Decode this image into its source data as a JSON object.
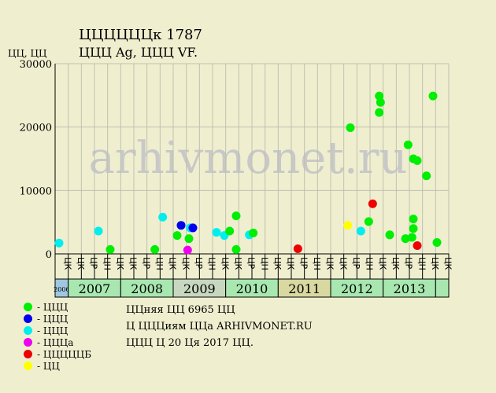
{
  "header": {
    "title": "ЦЦЦЦЦЦк 1787",
    "subtitle": "ЦЦЦ Ag, ЦЦЦ VF.",
    "y_unit": "ЦЦ, ЦЦ"
  },
  "watermark": "arhivmonet.ru",
  "legend": [
    {
      "label": "- ЦЦЦ",
      "color": "#00ee00"
    },
    {
      "label": "- ЦЦЦ",
      "color": "#0000ee"
    },
    {
      "label": "- ЦЦЦ",
      "color": "#00eeee"
    },
    {
      "label": "- ЦЦЦа",
      "color": "#ee00ee"
    },
    {
      "label": "- ЦЦЦЦЦБ",
      "color": "#ee0000"
    },
    {
      "label": "- ЦЦ",
      "color": "#ffff00"
    }
  ],
  "info": {
    "line1": "ЦЦняя ЦЦ 6965 ЦЦ",
    "line2": "Ц ЦЦЦиям ЦЦа ARHIVMONET.RU",
    "line3": "ЦЦЦ Ц 20 Ця 2017 ЦЦ."
  },
  "chart_data": {
    "type": "scatter",
    "ylim": [
      0,
      30000
    ],
    "yticks": [
      0,
      10000,
      20000,
      30000
    ],
    "quarter_labels": [
      "ЦК",
      "ЦР",
      "ЦН",
      "ЦК"
    ],
    "years": [
      {
        "label": "2006",
        "quarters": 1,
        "color": "#9fc8e0"
      },
      {
        "label": "2007",
        "quarters": 4,
        "color": "#a8e8b0"
      },
      {
        "label": "2008",
        "quarters": 4,
        "color": "#a8e8b0"
      },
      {
        "label": "2009",
        "quarters": 4,
        "color": "#c8d8c0"
      },
      {
        "label": "2010",
        "quarters": 4,
        "color": "#a8e8b0"
      },
      {
        "label": "2011",
        "quarters": 4,
        "color": "#d8d8a0"
      },
      {
        "label": "2012",
        "quarters": 4,
        "color": "#a8e8b0"
      },
      {
        "label": "2013",
        "quarters": 4,
        "color": "#a8e8b0"
      },
      {
        "label": "",
        "quarters": 1,
        "color": "#a8e8b0"
      }
    ],
    "points": [
      {
        "x": 0.3,
        "y": 1700,
        "c": "#00eeee"
      },
      {
        "x": 3.3,
        "y": 3600,
        "c": "#00eeee"
      },
      {
        "x": 4.2,
        "y": 700,
        "c": "#00ee00"
      },
      {
        "x": 7.6,
        "y": 700,
        "c": "#00ee00"
      },
      {
        "x": 8.2,
        "y": 5800,
        "c": "#00eeee"
      },
      {
        "x": 9.3,
        "y": 2900,
        "c": "#00ee00"
      },
      {
        "x": 9.6,
        "y": 4500,
        "c": "#0000ee"
      },
      {
        "x": 10.1,
        "y": 600,
        "c": "#ee00ee"
      },
      {
        "x": 10.2,
        "y": 2400,
        "c": "#00ee00"
      },
      {
        "x": 10.3,
        "y": 4100,
        "c": "#00eeee"
      },
      {
        "x": 10.5,
        "y": 4100,
        "c": "#0000ee"
      },
      {
        "x": 12.3,
        "y": 3400,
        "c": "#00eeee"
      },
      {
        "x": 12.9,
        "y": 2900,
        "c": "#00eeee"
      },
      {
        "x": 13.3,
        "y": 3600,
        "c": "#00ee00"
      },
      {
        "x": 13.8,
        "y": 6000,
        "c": "#00ee00"
      },
      {
        "x": 13.8,
        "y": 700,
        "c": "#00ee00"
      },
      {
        "x": 14.8,
        "y": 3000,
        "c": "#00eeee"
      },
      {
        "x": 15.1,
        "y": 3300,
        "c": "#00ee00"
      },
      {
        "x": 18.5,
        "y": 800,
        "c": "#ee0000"
      },
      {
        "x": 22.3,
        "y": 4500,
        "c": "#ffff00"
      },
      {
        "x": 22.5,
        "y": 19900,
        "c": "#00ee00"
      },
      {
        "x": 23.3,
        "y": 3600,
        "c": "#00eeee"
      },
      {
        "x": 23.9,
        "y": 5100,
        "c": "#00ee00"
      },
      {
        "x": 24.2,
        "y": 7900,
        "c": "#ee0000"
      },
      {
        "x": 24.7,
        "y": 24900,
        "c": "#00ee00"
      },
      {
        "x": 24.8,
        "y": 23900,
        "c": "#00ee00"
      },
      {
        "x": 24.7,
        "y": 22300,
        "c": "#00ee00"
      },
      {
        "x": 25.5,
        "y": 3000,
        "c": "#00ee00"
      },
      {
        "x": 26.7,
        "y": 2400,
        "c": "#00ee00"
      },
      {
        "x": 26.9,
        "y": 17200,
        "c": "#00ee00"
      },
      {
        "x": 27.2,
        "y": 2600,
        "c": "#00ee00"
      },
      {
        "x": 27.3,
        "y": 15000,
        "c": "#00ee00"
      },
      {
        "x": 27.3,
        "y": 5500,
        "c": "#00ee00"
      },
      {
        "x": 27.3,
        "y": 4000,
        "c": "#00ee00"
      },
      {
        "x": 27.6,
        "y": 14700,
        "c": "#00ee00"
      },
      {
        "x": 27.6,
        "y": 1300,
        "c": "#ee0000"
      },
      {
        "x": 28.3,
        "y": 12300,
        "c": "#00ee00"
      },
      {
        "x": 28.8,
        "y": 24900,
        "c": "#00ee00"
      },
      {
        "x": 29.1,
        "y": 1800,
        "c": "#00ee00"
      }
    ]
  }
}
